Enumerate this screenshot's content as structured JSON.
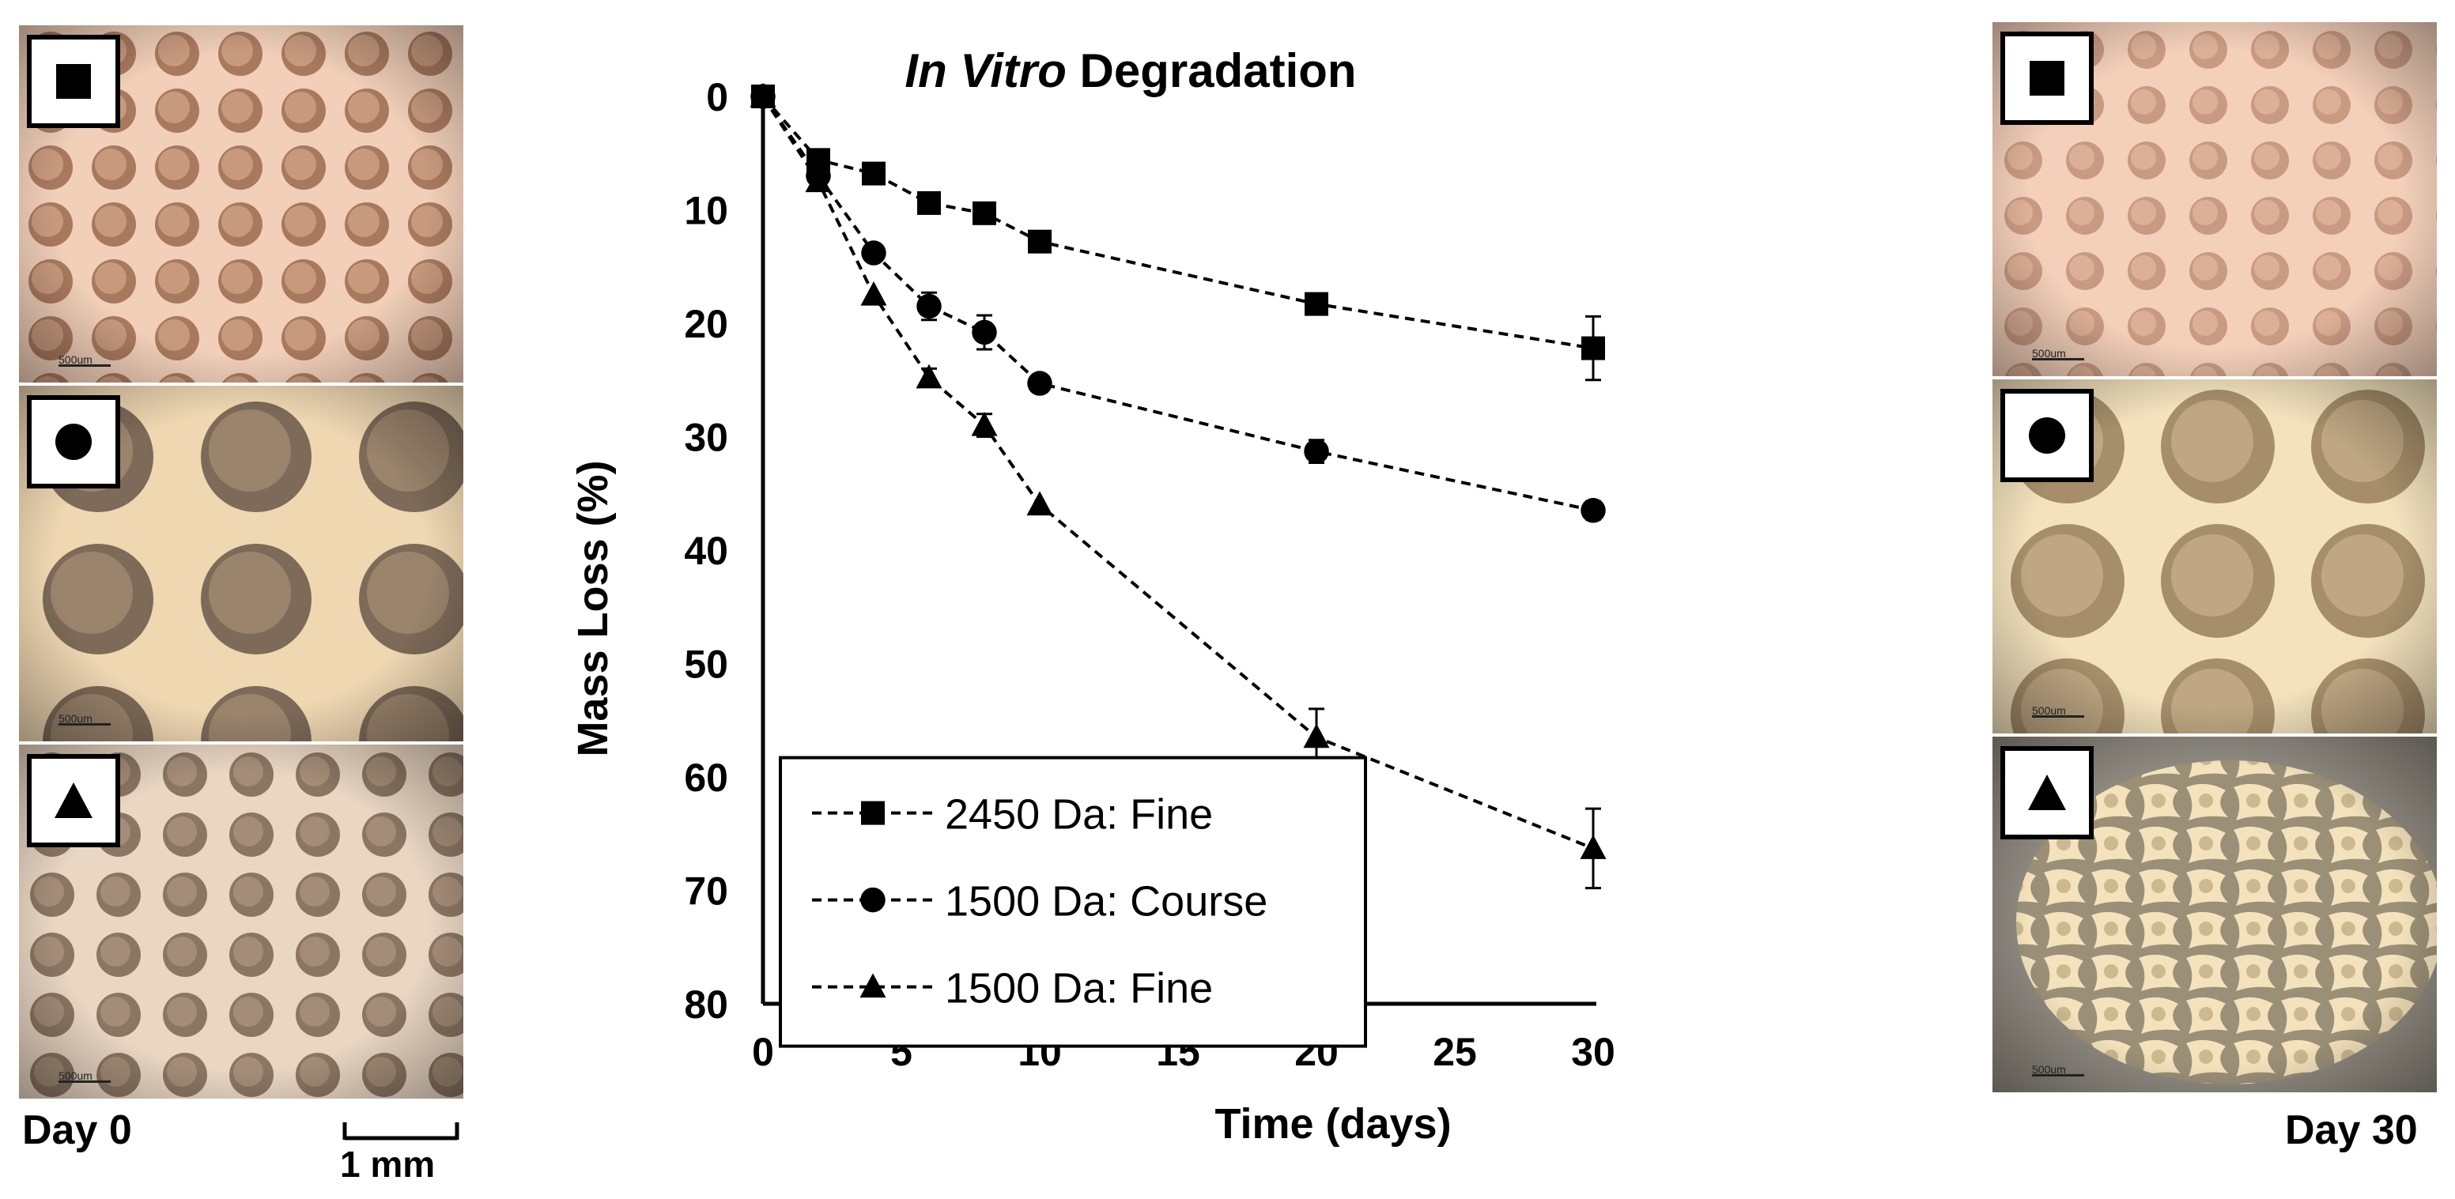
{
  "chart_data": {
    "type": "line",
    "title": {
      "italic": "In Vitro",
      "rest": " Degradation"
    },
    "xlabel": "Time (days)",
    "ylabel": "Mass Loss (%)",
    "x_ticks": [
      0,
      5,
      10,
      15,
      20,
      25,
      30
    ],
    "y_ticks": [
      0,
      10,
      20,
      30,
      40,
      50,
      60,
      70,
      80
    ],
    "xlim": [
      0,
      30
    ],
    "ylim": [
      0,
      80
    ],
    "y_inverted": true,
    "legend_position": "bottom-left",
    "series": [
      {
        "name": "2450 Da: Fine",
        "marker": "square",
        "x": [
          0,
          2,
          4,
          6,
          8,
          10,
          20,
          30
        ],
        "y": [
          0,
          5.6,
          6.8,
          9.4,
          10.3,
          12.8,
          18.3,
          22.2
        ],
        "err": [
          0,
          0,
          0,
          0,
          0,
          0,
          0,
          2.8
        ]
      },
      {
        "name": "1500 Da: Course",
        "marker": "circle",
        "x": [
          0,
          2,
          4,
          6,
          8,
          10,
          20,
          30
        ],
        "y": [
          0,
          7.0,
          13.8,
          18.5,
          20.8,
          25.3,
          31.3,
          36.5
        ],
        "err": [
          0,
          0,
          0,
          1.2,
          1.5,
          0,
          1.0,
          0.8
        ]
      },
      {
        "name": "1500 Da: Fine",
        "marker": "triangle",
        "x": [
          0,
          2,
          4,
          6,
          8,
          10,
          20,
          30
        ],
        "y": [
          0,
          7.5,
          17.5,
          24.8,
          29.0,
          36.0,
          56.5,
          66.3
        ],
        "err": [
          0,
          0,
          0,
          0.8,
          1.0,
          0,
          2.5,
          3.5
        ]
      }
    ]
  },
  "panels": {
    "day0_label": "Day 0",
    "day30_label": "Day 30",
    "scale_bar_label": "1 mm",
    "micro_scale_label": "500um",
    "colors": {
      "square_bg": "#b58a6e",
      "square_strut": "#f1cfb8",
      "circle_bg": "#8e7660",
      "circle_strut": "#efd7b2",
      "triangle_bg": "#8b7563",
      "triangle_strut": "#e9d6c3",
      "day30_square_bg": "#c99a82",
      "day30_square_strut": "#f4d0ba",
      "day30_circle_bg": "#a68e6a",
      "day30_circle_strut": "#f3e2bd",
      "day30_triangle_bg": "#9b9077",
      "day30_triangle_strut": "#f4e2bc"
    }
  }
}
